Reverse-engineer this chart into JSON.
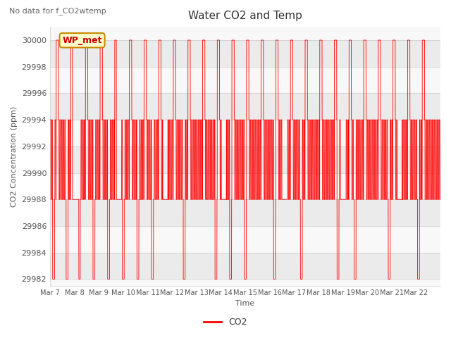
{
  "title": "Water CO2 and Temp",
  "suptitle": "No data for f_CO2wtemp",
  "ylabel": "CO2 Concentration (ppm)",
  "xlabel": "Time",
  "legend_label": "CO2",
  "legend_color": "#ff0000",
  "annotation_text": "WP_met",
  "ylim": [
    29981.5,
    30001.0
  ],
  "yticks": [
    29982,
    29984,
    29986,
    29988,
    29990,
    29992,
    29994,
    29996,
    29998,
    30000
  ],
  "background_color": "#ffffff",
  "line_color": "#ff0000",
  "xtick_labels": [
    "Mar 7",
    "Mar 8",
    "Mar 9",
    "Mar 10",
    "Mar 11",
    "Mar 12",
    "Mar 13",
    "Mar 14",
    "Mar 15",
    "Mar 16",
    "Mar 17",
    "Mar 18",
    "Mar 19",
    "Mar 20",
    "Mar 21",
    "Mar 22"
  ],
  "num_days": 16
}
